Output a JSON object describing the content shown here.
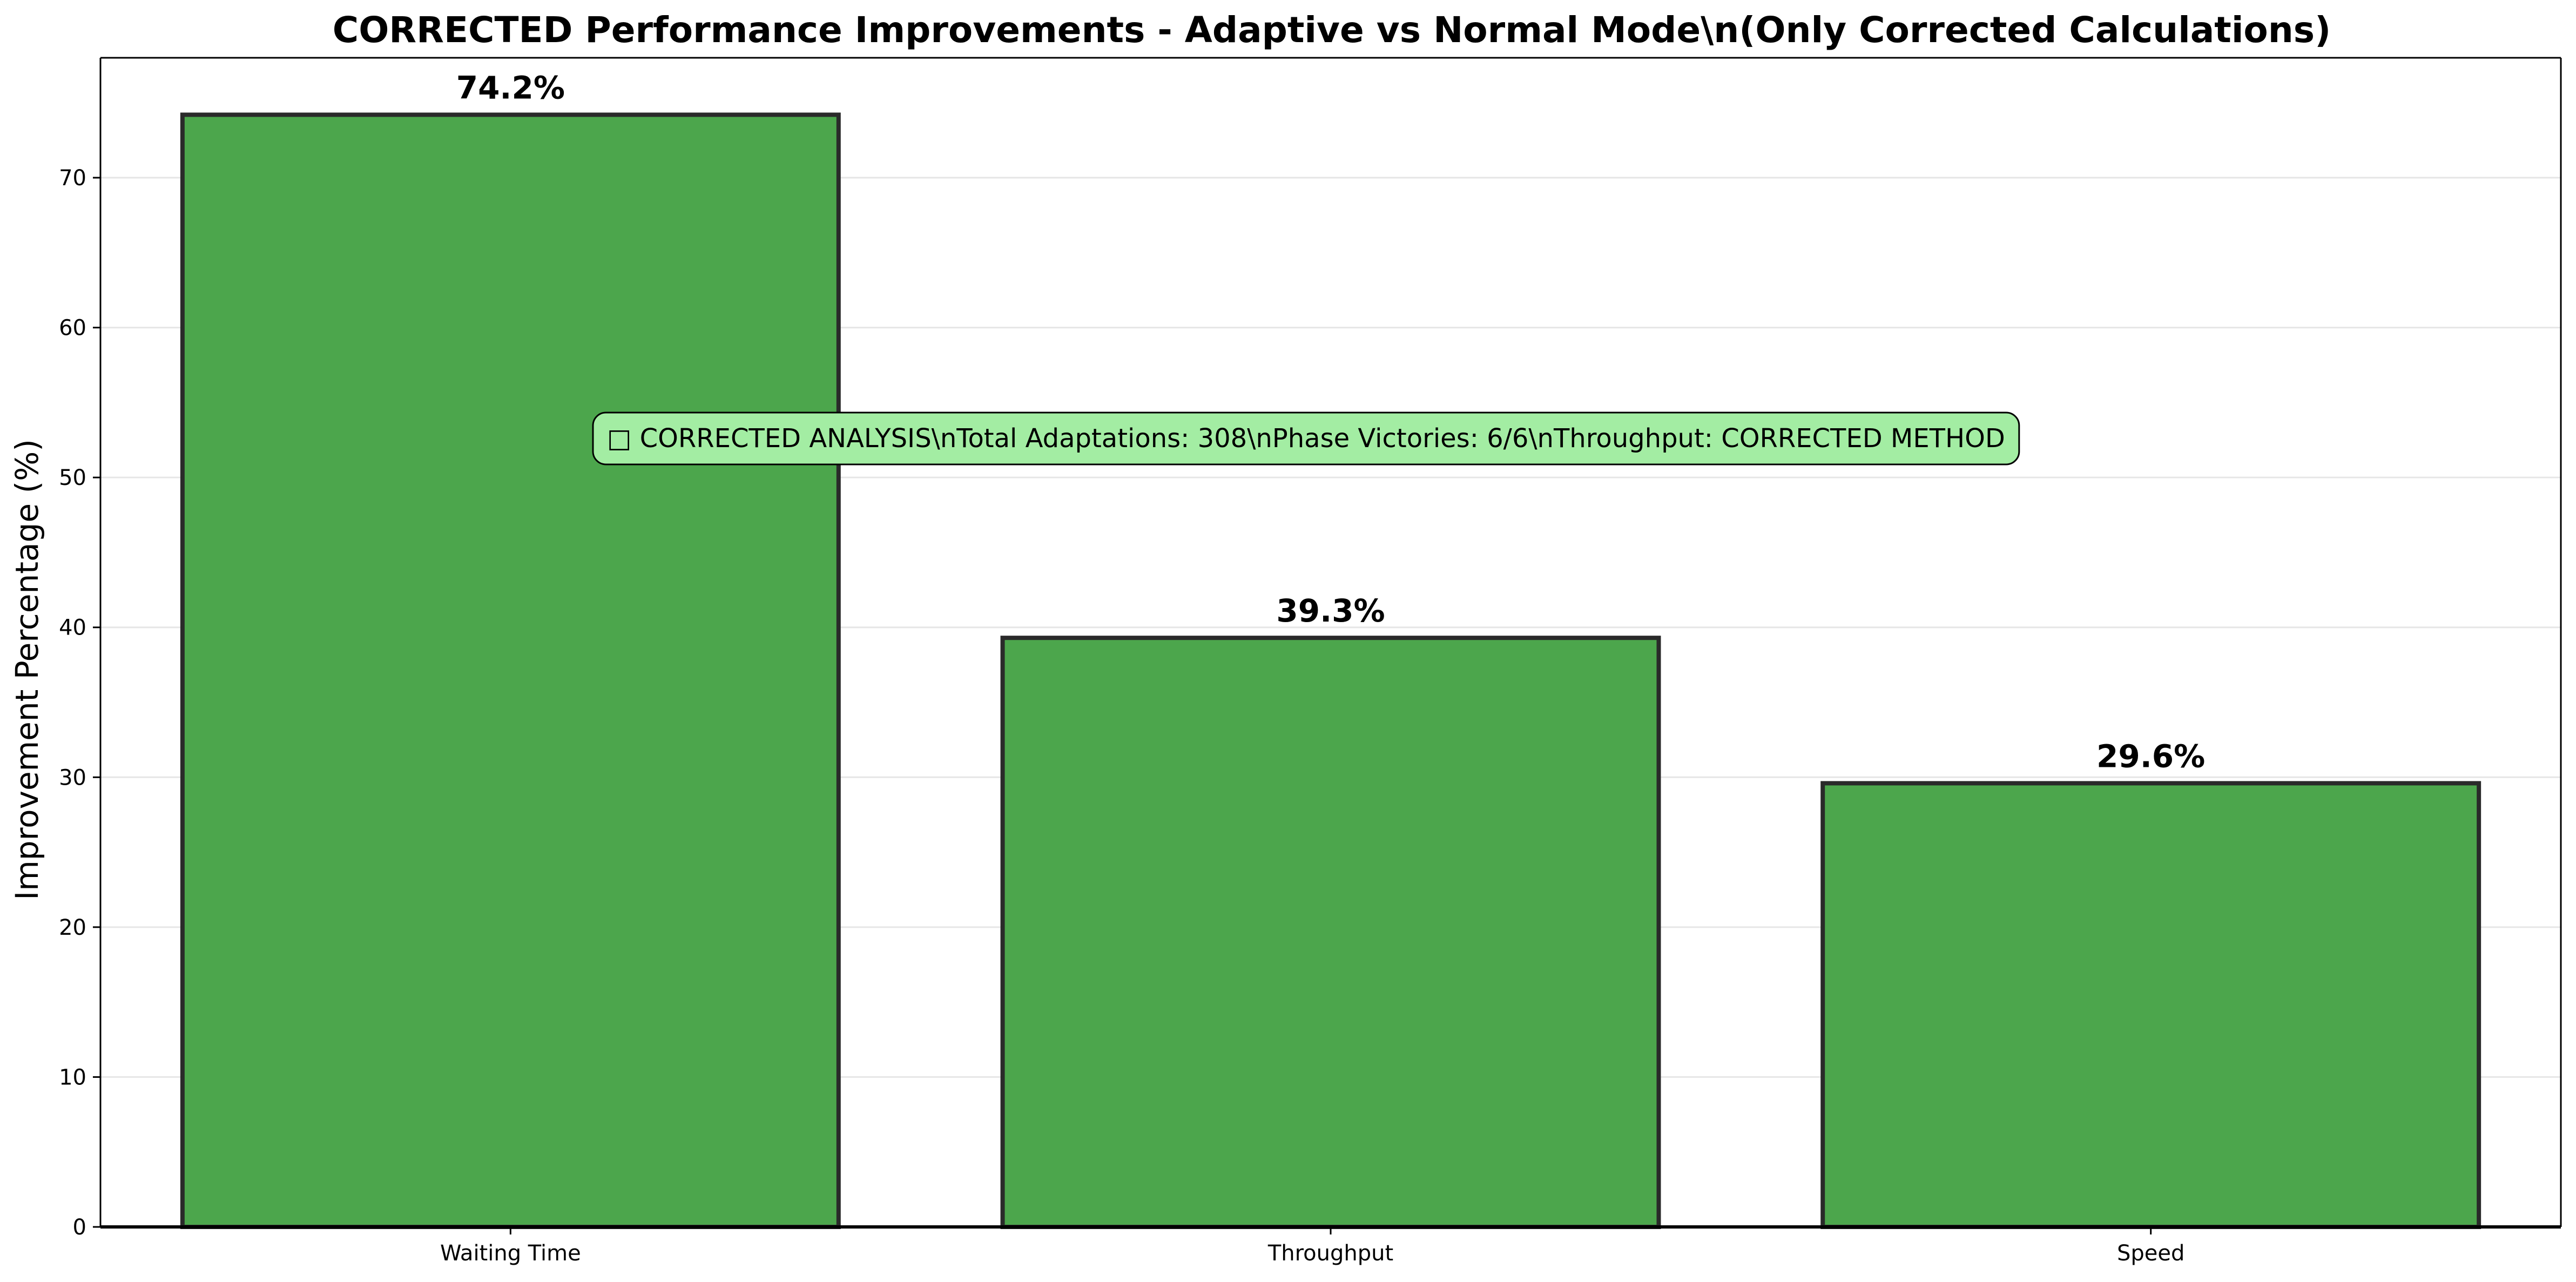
{
  "chart_data": {
    "type": "bar",
    "title": "CORRECTED Performance Improvements - Adaptive vs Normal Mode\\n(Only Corrected Calculations)",
    "xlabel": "",
    "ylabel": "Improvement Percentage (%)",
    "categories": [
      "Waiting Time",
      "Throughput",
      "Speed"
    ],
    "values": [
      74.2,
      39.3,
      29.6
    ],
    "value_labels": [
      "74.2%",
      "39.3%",
      "29.6%"
    ],
    "ylim": [
      0,
      78
    ],
    "yticks": [
      0,
      10,
      20,
      30,
      40,
      50,
      60,
      70
    ],
    "grid": "y",
    "bar_color": "#4CA64C",
    "bar_edge_color": "#2a2a2a",
    "annotation": {
      "text": "□ CORRECTED ANALYSIS\\nTotal Adaptations: 308\\nPhase Victories: 6/6\\nThroughput: CORRECTED METHOD",
      "background": "#A3EDA3"
    }
  }
}
